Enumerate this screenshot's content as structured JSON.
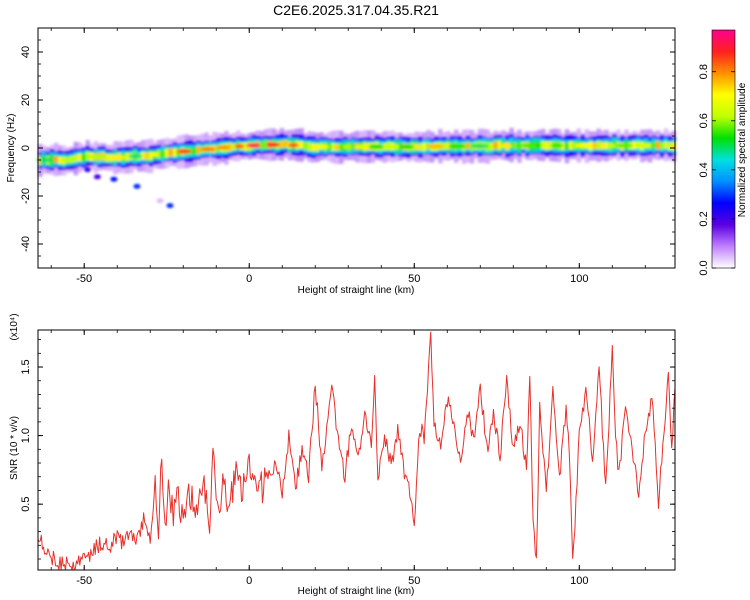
{
  "title": "C2E6.2025.317.04.35.R21",
  "colors": {
    "series": "#e8302b",
    "frame": "#000000"
  },
  "chart_data": [
    {
      "id": "spectrogram",
      "type": "heatmap",
      "xlabel": "Height of straight line (km)",
      "ylabel": "Frequency (Hz)",
      "xlim": [
        -64,
        129
      ],
      "ylim": [
        -50,
        50
      ],
      "xticks": [
        -50,
        0,
        50,
        100
      ],
      "xtick_labels": [
        "-50",
        "0",
        "50",
        "100"
      ],
      "yticks": [
        -40,
        -20,
        0,
        20,
        40
      ],
      "ytick_labels": [
        "-40",
        "-20",
        "0",
        "20",
        "40"
      ],
      "ridge_centerline_hz": [
        [
          -64,
          -5
        ],
        [
          -55,
          -5
        ],
        [
          -50,
          -3.5
        ],
        [
          -40,
          -4
        ],
        [
          -30,
          -3
        ],
        [
          -25,
          -2
        ],
        [
          -15,
          -1
        ],
        [
          -10,
          0
        ],
        [
          0,
          1
        ],
        [
          10,
          1.5
        ],
        [
          20,
          0.5
        ],
        [
          50,
          0.5
        ],
        [
          80,
          1
        ],
        [
          100,
          1
        ],
        [
          129,
          1
        ]
      ],
      "ridge_halfwidth_hz": 2.5,
      "scattered_blobs": [
        {
          "km": -49,
          "hz": -9,
          "amp": 0.22
        },
        {
          "km": -46,
          "hz": -12,
          "amp": 0.2
        },
        {
          "km": -41,
          "hz": -13,
          "amp": 0.28
        },
        {
          "km": -34,
          "hz": -16,
          "amp": 0.3
        },
        {
          "km": -27,
          "hz": -22,
          "amp": 0.05
        },
        {
          "km": -24,
          "hz": -24,
          "amp": 0.3
        }
      ]
    },
    {
      "id": "colorbar",
      "type": "colorbar",
      "label": "Normalized spectral amplitude",
      "range": [
        0,
        0.97
      ],
      "ticks": [
        0.0,
        0.2,
        0.4,
        0.6,
        0.8
      ],
      "tick_labels": [
        "0.0",
        "0.2",
        "0.4",
        "0.6",
        "0.8"
      ],
      "colors": [
        "#ffffff",
        "#c080ff",
        "#5a00e0",
        "#0000ff",
        "#0090ff",
        "#00e0e0",
        "#00e000",
        "#c0ff00",
        "#ffff00",
        "#ff9000",
        "#ff2020",
        "#ff0090"
      ]
    },
    {
      "id": "snr",
      "type": "line",
      "xlabel": "Height of straight line (km)",
      "ylabel": "SNR (10 * v/v)",
      "scale_label": "(x10⁴)",
      "xlim": [
        -64,
        129
      ],
      "ylim": [
        0.02,
        1.77
      ],
      "xticks": [
        -50,
        0,
        50,
        100
      ],
      "xtick_labels": [
        "-50",
        "0",
        "50",
        "100"
      ],
      "yticks": [
        0.5,
        1.0,
        1.5
      ],
      "ytick_labels": [
        "0.5",
        "1.0",
        "1.5"
      ],
      "series": [
        {
          "name": "SNR",
          "x": [
            -64,
            -62,
            -60,
            -58,
            -56,
            -54,
            -52,
            -50,
            -48,
            -46,
            -44,
            -42,
            -40,
            -38,
            -36,
            -34,
            -32,
            -30,
            -28.5,
            -27.5,
            -26.5,
            -25.5,
            -24.5,
            -23,
            -21.5,
            -20,
            -18,
            -16,
            -14,
            -12,
            -11,
            -10,
            -8,
            -6,
            -4,
            -2,
            0,
            2,
            4,
            6,
            8,
            10,
            12,
            14,
            16,
            18,
            20,
            22,
            23.5,
            25,
            27,
            29,
            31,
            33,
            35,
            37,
            38,
            39,
            41,
            43,
            45,
            47,
            49,
            50,
            51,
            52,
            53,
            54,
            55,
            56,
            58,
            60,
            62,
            64,
            66,
            68,
            70,
            72,
            74,
            76,
            78,
            80,
            82,
            84,
            85,
            86,
            87,
            88,
            90,
            92,
            94,
            96,
            97,
            98,
            100,
            102,
            104,
            106,
            108,
            109,
            110,
            111,
            112,
            114,
            116,
            118,
            120,
            122,
            124,
            126,
            127,
            128,
            129
          ],
          "values": [
            0.3,
            0.18,
            0.12,
            0.08,
            0.06,
            0.05,
            0.07,
            0.1,
            0.14,
            0.19,
            0.23,
            0.2,
            0.26,
            0.22,
            0.3,
            0.24,
            0.38,
            0.27,
            0.75,
            0.2,
            0.9,
            0.3,
            0.65,
            0.4,
            0.55,
            0.35,
            0.6,
            0.42,
            0.72,
            0.3,
            0.9,
            0.45,
            0.62,
            0.5,
            0.7,
            0.58,
            0.78,
            0.6,
            0.62,
            0.72,
            0.8,
            0.55,
            1.0,
            0.62,
            0.9,
            0.7,
            1.38,
            0.78,
            1.02,
            1.38,
            0.95,
            0.7,
            1.1,
            0.85,
            1.18,
            0.92,
            1.4,
            0.65,
            1.0,
            0.78,
            1.05,
            0.7,
            0.55,
            0.35,
            0.85,
            1.05,
            1.0,
            1.35,
            1.77,
            1.1,
            0.9,
            1.25,
            1.1,
            0.8,
            1.2,
            0.95,
            1.35,
            0.9,
            1.15,
            0.85,
            1.4,
            0.9,
            1.1,
            0.75,
            1.45,
            0.4,
            0.08,
            1.2,
            0.6,
            1.3,
            0.7,
            1.2,
            0.9,
            0.05,
            1.0,
            1.35,
            0.8,
            1.5,
            0.6,
            1.1,
            1.7,
            1.0,
            0.7,
            1.2,
            0.9,
            0.6,
            1.0,
            1.3,
            0.5,
            1.15,
            1.45,
            0.9,
            1.35
          ]
        }
      ]
    }
  ]
}
